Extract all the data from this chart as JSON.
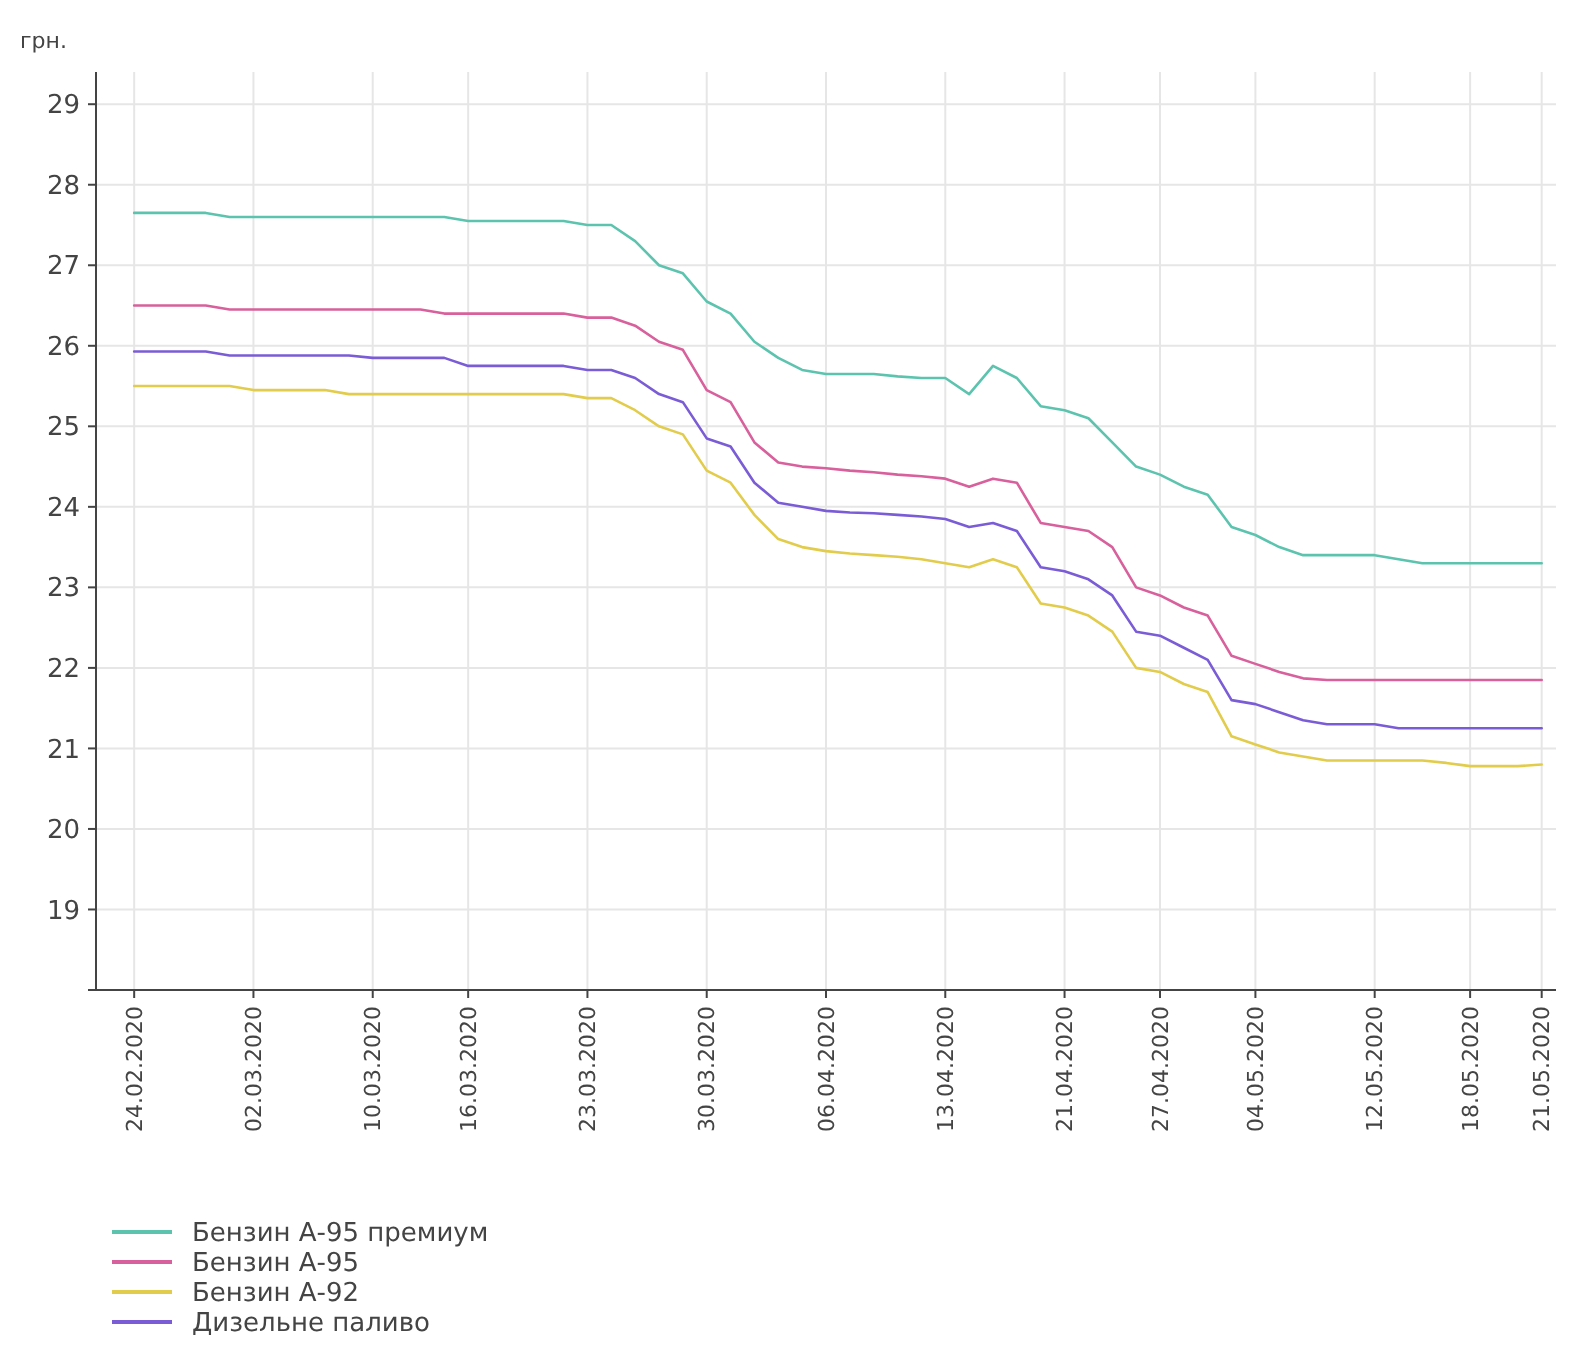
{
  "chart_data": {
    "type": "line",
    "ylabel": "грн.",
    "ylim": [
      18,
      29.4
    ],
    "yticks": [
      19,
      20,
      21,
      22,
      23,
      24,
      25,
      26,
      27,
      28,
      29
    ],
    "grid": true,
    "legend": "bottom left",
    "marker": "none",
    "line_style": "solid",
    "categories": [
      "24.02.2020",
      null,
      null,
      null,
      null,
      "02.03.2020",
      null,
      null,
      null,
      null,
      "10.03.2020",
      null,
      null,
      null,
      "16.03.2020",
      null,
      null,
      null,
      null,
      "23.03.2020",
      null,
      null,
      null,
      null,
      "30.03.2020",
      null,
      null,
      null,
      null,
      "06.04.2020",
      null,
      null,
      null,
      null,
      "13.04.2020",
      null,
      null,
      null,
      null,
      "21.04.2020",
      null,
      null,
      null,
      "27.04.2020",
      null,
      null,
      null,
      "04.05.2020",
      null,
      null,
      null,
      null,
      "12.05.2020",
      null,
      null,
      null,
      "18.05.2020",
      null,
      null,
      "21.05.2020"
    ],
    "series": [
      {
        "name": "Бензин А-95 премиум",
        "color": "#5cc4ae",
        "values": [
          27.65,
          27.65,
          27.65,
          27.65,
          27.6,
          27.6,
          27.6,
          27.6,
          27.6,
          27.6,
          27.6,
          27.6,
          27.6,
          27.6,
          27.55,
          27.55,
          27.55,
          27.55,
          27.55,
          27.5,
          27.5,
          27.3,
          27.0,
          26.9,
          26.55,
          26.4,
          26.05,
          25.85,
          25.7,
          25.65,
          25.65,
          25.65,
          25.62,
          25.6,
          25.6,
          25.4,
          25.75,
          25.6,
          25.25,
          25.2,
          25.1,
          24.8,
          24.5,
          24.4,
          24.25,
          24.15,
          23.75,
          23.65,
          23.5,
          23.4,
          23.4,
          23.4,
          23.4,
          23.35,
          23.3,
          23.3,
          23.3,
          23.3,
          23.3,
          23.3
        ]
      },
      {
        "name": "Бензин А-95",
        "color": "#d8609c",
        "values": [
          26.5,
          26.5,
          26.5,
          26.5,
          26.45,
          26.45,
          26.45,
          26.45,
          26.45,
          26.45,
          26.45,
          26.45,
          26.45,
          26.4,
          26.4,
          26.4,
          26.4,
          26.4,
          26.4,
          26.35,
          26.35,
          26.25,
          26.05,
          25.95,
          25.45,
          25.3,
          24.8,
          24.55,
          24.5,
          24.48,
          24.45,
          24.43,
          24.4,
          24.38,
          24.35,
          24.25,
          24.35,
          24.3,
          23.8,
          23.75,
          23.7,
          23.5,
          23.0,
          22.9,
          22.75,
          22.65,
          22.15,
          22.05,
          21.95,
          21.87,
          21.85,
          21.85,
          21.85,
          21.85,
          21.85,
          21.85,
          21.85,
          21.85,
          21.85,
          21.85
        ]
      },
      {
        "name": "Бензин А-92",
        "color": "#e2cc4c",
        "values": [
          25.5,
          25.5,
          25.5,
          25.5,
          25.5,
          25.45,
          25.45,
          25.45,
          25.45,
          25.4,
          25.4,
          25.4,
          25.4,
          25.4,
          25.4,
          25.4,
          25.4,
          25.4,
          25.4,
          25.35,
          25.35,
          25.2,
          25.0,
          24.9,
          24.45,
          24.3,
          23.9,
          23.6,
          23.5,
          23.45,
          23.42,
          23.4,
          23.38,
          23.35,
          23.3,
          23.25,
          23.35,
          23.25,
          22.8,
          22.75,
          22.65,
          22.45,
          22.0,
          21.95,
          21.8,
          21.7,
          21.15,
          21.05,
          20.95,
          20.9,
          20.85,
          20.85,
          20.85,
          20.85,
          20.85,
          20.82,
          20.78,
          20.78,
          20.78,
          20.8
        ]
      },
      {
        "name": "Дизельне паливо",
        "color": "#7a5cd6",
        "values": [
          25.93,
          25.93,
          25.93,
          25.93,
          25.88,
          25.88,
          25.88,
          25.88,
          25.88,
          25.88,
          25.85,
          25.85,
          25.85,
          25.85,
          25.75,
          25.75,
          25.75,
          25.75,
          25.75,
          25.7,
          25.7,
          25.6,
          25.4,
          25.3,
          24.85,
          24.75,
          24.3,
          24.05,
          24.0,
          23.95,
          23.93,
          23.92,
          23.9,
          23.88,
          23.85,
          23.75,
          23.8,
          23.7,
          23.25,
          23.2,
          23.1,
          22.9,
          22.45,
          22.4,
          22.25,
          22.1,
          21.6,
          21.55,
          21.45,
          21.35,
          21.3,
          21.3,
          21.3,
          21.25,
          21.25,
          21.25,
          21.25,
          21.25,
          21.25,
          21.25
        ]
      }
    ]
  }
}
